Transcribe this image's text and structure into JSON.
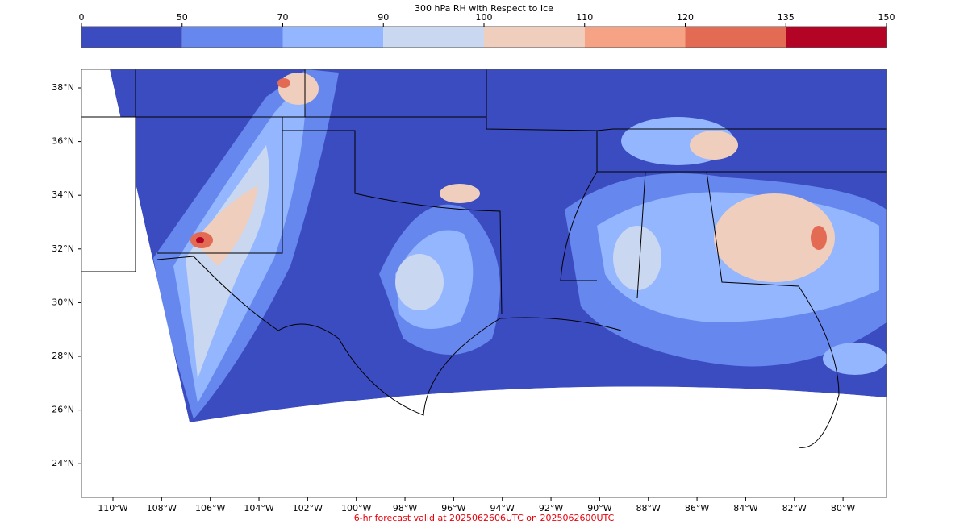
{
  "colorbar": {
    "title": "300 hPa RH with Respect to Ice",
    "ticks": [
      0,
      50,
      70,
      90,
      100,
      110,
      120,
      135,
      150
    ],
    "colors": [
      "#3b4cc0",
      "#6687ed",
      "#94b6ff",
      "#c9d7f0",
      "#efcebd",
      "#f6a385",
      "#e36a53",
      "#b40426"
    ]
  },
  "map": {
    "lat_labels": [
      {
        "value": 38,
        "label": "38°N"
      },
      {
        "value": 36,
        "label": "36°N"
      },
      {
        "value": 34,
        "label": "34°N"
      },
      {
        "value": 32,
        "label": "32°N"
      },
      {
        "value": 30,
        "label": "30°N"
      },
      {
        "value": 28,
        "label": "28°N"
      },
      {
        "value": 26,
        "label": "26°N"
      },
      {
        "value": 24,
        "label": "24°N"
      }
    ],
    "lon_labels": [
      {
        "value": -110,
        "label": "110°W"
      },
      {
        "value": -108,
        "label": "108°W"
      },
      {
        "value": -106,
        "label": "106°W"
      },
      {
        "value": -104,
        "label": "104°W"
      },
      {
        "value": -102,
        "label": "102°W"
      },
      {
        "value": -100,
        "label": "100°W"
      },
      {
        "value": -98,
        "label": "98°W"
      },
      {
        "value": -96,
        "label": "96°W"
      },
      {
        "value": -94,
        "label": "94°W"
      },
      {
        "value": -92,
        "label": "92°W"
      },
      {
        "value": -90,
        "label": "90°W"
      },
      {
        "value": -88,
        "label": "88°W"
      },
      {
        "value": -86,
        "label": "86°W"
      },
      {
        "value": -84,
        "label": "84°W"
      },
      {
        "value": -82,
        "label": "82°W"
      },
      {
        "value": -80,
        "label": "80°W"
      }
    ]
  },
  "footer": "6-hr forecast valid at 2025062606UTC on 2025062600UTC"
}
